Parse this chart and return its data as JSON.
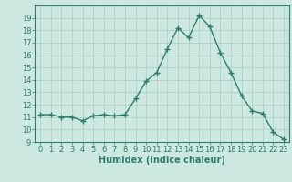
{
  "x": [
    0,
    1,
    2,
    3,
    4,
    5,
    6,
    7,
    8,
    9,
    10,
    11,
    12,
    13,
    14,
    15,
    16,
    17,
    18,
    19,
    20,
    21,
    22,
    23
  ],
  "y": [
    11.2,
    11.2,
    11.0,
    11.0,
    10.7,
    11.1,
    11.2,
    11.1,
    11.2,
    12.5,
    13.9,
    14.6,
    16.5,
    18.2,
    17.4,
    19.2,
    18.3,
    16.2,
    14.6,
    12.75,
    11.5,
    11.3,
    9.8,
    9.2
  ],
  "line_color": "#2d7d6e",
  "marker": "+",
  "marker_size": 4,
  "marker_lw": 1.0,
  "line_width": 1.0,
  "background_color": "#cce8e0",
  "grid_color": "#aaccc4",
  "xlabel": "Humidex (Indice chaleur)",
  "xlabel_fontsize": 7,
  "xlabel_fontweight": "bold",
  "ylim": [
    9,
    20
  ],
  "xlim": [
    -0.5,
    23.5
  ],
  "yticks": [
    9,
    10,
    11,
    12,
    13,
    14,
    15,
    16,
    17,
    18,
    19
  ],
  "xticks": [
    0,
    1,
    2,
    3,
    4,
    5,
    6,
    7,
    8,
    9,
    10,
    11,
    12,
    13,
    14,
    15,
    16,
    17,
    18,
    19,
    20,
    21,
    22,
    23
  ],
  "tick_fontsize": 6,
  "axis_color": "#2d7d6e"
}
